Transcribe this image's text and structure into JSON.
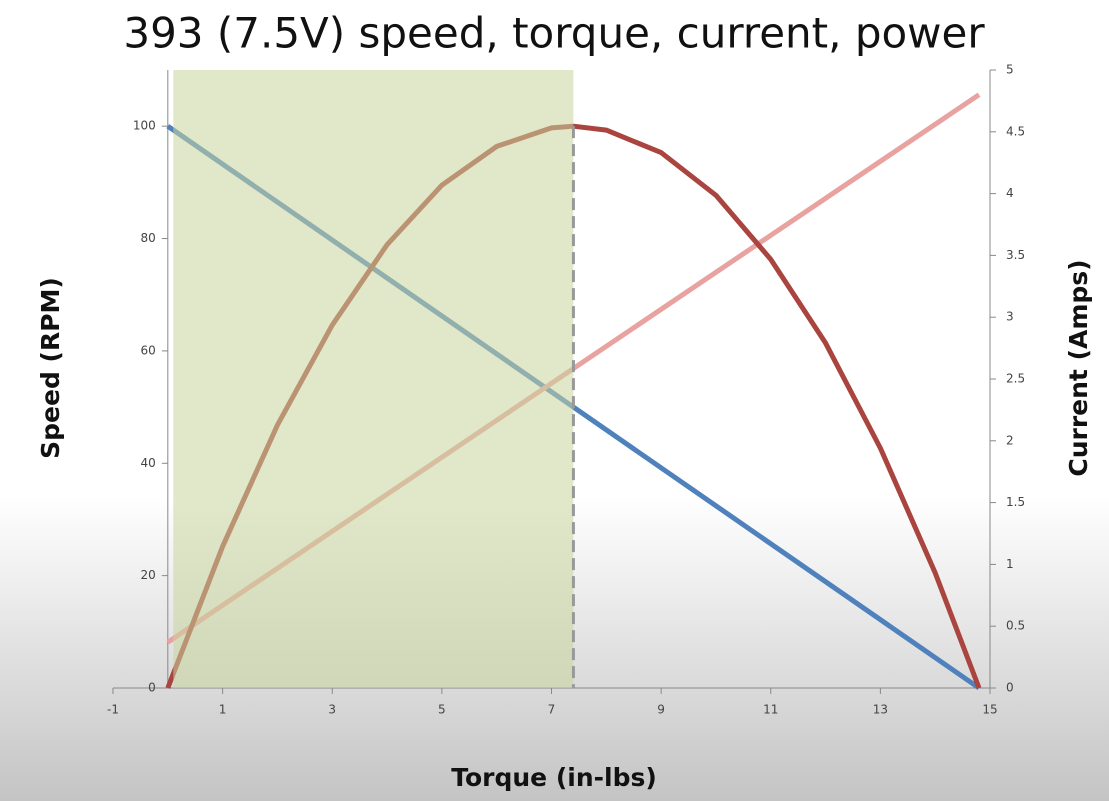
{
  "chart_data": {
    "type": "line",
    "title": "393 (7.5V) speed, torque, current, power",
    "x_label": "Torque (in-lbs)",
    "y_label": "Speed (RPM)",
    "y2_label": "Current (Amps)",
    "xlim": [
      -1,
      15
    ],
    "xticks": [
      -1,
      1,
      3,
      5,
      7,
      9,
      11,
      13,
      15
    ],
    "ylim": [
      0,
      110
    ],
    "yticks": [
      0,
      20,
      40,
      60,
      80,
      100
    ],
    "y2lim": [
      0,
      5
    ],
    "y2ticks": [
      0,
      0.5,
      1,
      1.5,
      2,
      2.5,
      3,
      3.5,
      4,
      4.5,
      5
    ],
    "highlight": {
      "xrange": [
        0.1,
        7.4
      ],
      "color": "#c9d59e",
      "line_x": 7.4
    },
    "series": [
      {
        "color": "#4f81bd",
        "x": [
          0,
          14.8
        ],
        "values": [
          100,
          0
        ]
      },
      {
        "color": "#e8a3a0",
        "axis": "y2",
        "x": [
          0,
          14.8
        ],
        "values": [
          0.37,
          4.8
        ]
      },
      {
        "color": "#a9443f",
        "x": [
          0,
          1,
          2,
          3,
          4,
          5,
          6,
          7,
          7.4,
          8,
          9,
          10,
          11,
          12,
          13,
          14,
          14.8
        ],
        "values": [
          0,
          25.2,
          46.8,
          64.6,
          78.9,
          89.5,
          96.4,
          99.7,
          100,
          99.3,
          95.3,
          87.7,
          76.3,
          61.4,
          42.7,
          20.5,
          0
        ]
      }
    ]
  }
}
